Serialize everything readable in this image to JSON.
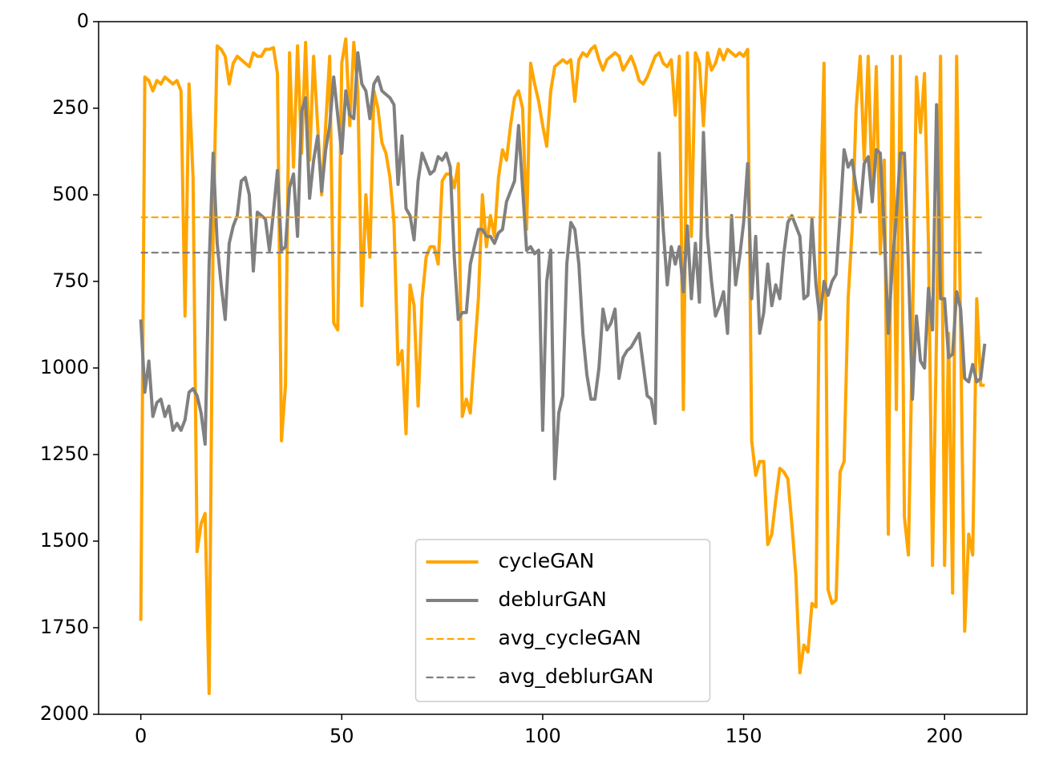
{
  "chart_data": {
    "type": "line",
    "x": [
      0,
      1,
      2,
      3,
      4,
      5,
      6,
      7,
      8,
      9,
      10,
      11,
      12,
      13,
      14,
      15,
      16,
      17,
      18,
      19,
      20,
      21,
      22,
      23,
      24,
      25,
      26,
      27,
      28,
      29,
      30,
      31,
      32,
      33,
      34,
      35,
      36,
      37,
      38,
      39,
      40,
      41,
      42,
      43,
      44,
      45,
      46,
      47,
      48,
      49,
      50,
      51,
      52,
      53,
      54,
      55,
      56,
      57,
      58,
      59,
      60,
      61,
      62,
      63,
      64,
      65,
      66,
      67,
      68,
      69,
      70,
      71,
      72,
      73,
      74,
      75,
      76,
      77,
      78,
      79,
      80,
      81,
      82,
      83,
      84,
      85,
      86,
      87,
      88,
      89,
      90,
      91,
      92,
      93,
      94,
      95,
      96,
      97,
      98,
      99,
      100,
      101,
      102,
      103,
      104,
      105,
      106,
      107,
      108,
      109,
      110,
      111,
      112,
      113,
      114,
      115,
      116,
      117,
      118,
      119,
      120,
      121,
      122,
      123,
      124,
      125,
      126,
      127,
      128,
      129,
      130,
      131,
      132,
      133,
      134,
      135,
      136,
      137,
      138,
      139,
      140,
      141,
      142,
      143,
      144,
      145,
      146,
      147,
      148,
      149,
      150,
      151,
      152,
      153,
      154,
      155,
      156,
      157,
      158,
      159,
      160,
      161,
      162,
      163,
      164,
      165,
      166,
      167,
      168,
      169,
      170,
      171,
      172,
      173,
      174,
      175,
      176,
      177,
      178,
      179,
      180,
      181,
      182,
      183,
      184,
      185,
      186,
      187,
      188,
      189,
      190,
      191,
      192,
      193,
      194,
      195,
      196,
      197,
      198,
      199,
      200,
      201,
      202,
      203,
      204,
      205,
      206,
      207,
      208,
      209,
      210
    ],
    "series": [
      {
        "name": "cycleGAN",
        "color": "#ffa500",
        "values": [
          1730,
          160,
          170,
          200,
          170,
          180,
          160,
          170,
          180,
          170,
          200,
          850,
          180,
          450,
          1530,
          1450,
          1420,
          1940,
          600,
          70,
          80,
          100,
          180,
          120,
          100,
          110,
          120,
          130,
          90,
          100,
          100,
          80,
          80,
          75,
          150,
          1210,
          1050,
          90,
          420,
          70,
          380,
          60,
          400,
          100,
          300,
          500,
          300,
          100,
          870,
          890,
          120,
          50,
          300,
          60,
          200,
          820,
          500,
          680,
          200,
          250,
          350,
          380,
          450,
          580,
          990,
          950,
          1190,
          760,
          820,
          1110,
          800,
          680,
          650,
          650,
          700,
          460,
          440,
          440,
          480,
          410,
          1140,
          1090,
          1130,
          960,
          800,
          500,
          650,
          560,
          620,
          450,
          370,
          400,
          300,
          220,
          200,
          250,
          600,
          120,
          180,
          230,
          300,
          360,
          200,
          130,
          120,
          110,
          120,
          110,
          230,
          110,
          90,
          100,
          80,
          70,
          110,
          140,
          110,
          100,
          90,
          100,
          140,
          120,
          100,
          130,
          170,
          180,
          160,
          130,
          100,
          90,
          120,
          130,
          110,
          270,
          100,
          1120,
          90,
          620,
          90,
          120,
          300,
          90,
          140,
          120,
          80,
          110,
          80,
          90,
          100,
          90,
          100,
          80,
          1210,
          1310,
          1270,
          1270,
          1510,
          1480,
          1380,
          1290,
          1300,
          1320,
          1450,
          1600,
          1880,
          1800,
          1820,
          1680,
          1690,
          600,
          120,
          1640,
          1680,
          1670,
          1300,
          1270,
          800,
          600,
          250,
          100,
          400,
          100,
          500,
          130,
          670,
          400,
          1480,
          100,
          1120,
          100,
          1430,
          1540,
          900,
          160,
          320,
          150,
          650,
          1570,
          900,
          100,
          1570,
          900,
          1650,
          100,
          900,
          1760,
          1480,
          1540,
          800,
          1050,
          1050
        ]
      },
      {
        "name": "deblurGAN",
        "color": "#808080",
        "values": [
          860,
          1070,
          980,
          1140,
          1100,
          1090,
          1140,
          1110,
          1180,
          1160,
          1180,
          1150,
          1070,
          1060,
          1080,
          1130,
          1220,
          700,
          380,
          640,
          760,
          860,
          640,
          590,
          560,
          460,
          450,
          500,
          720,
          550,
          560,
          570,
          660,
          550,
          430,
          660,
          650,
          480,
          440,
          620,
          260,
          220,
          510,
          400,
          330,
          490,
          370,
          300,
          160,
          270,
          380,
          200,
          270,
          280,
          90,
          180,
          200,
          280,
          180,
          160,
          200,
          210,
          220,
          240,
          470,
          330,
          540,
          560,
          630,
          460,
          380,
          410,
          440,
          430,
          390,
          400,
          380,
          420,
          680,
          860,
          840,
          840,
          700,
          650,
          600,
          600,
          620,
          620,
          640,
          610,
          600,
          520,
          490,
          460,
          300,
          480,
          660,
          650,
          670,
          660,
          1180,
          750,
          660,
          1320,
          1130,
          1080,
          700,
          580,
          600,
          700,
          900,
          1020,
          1090,
          1090,
          1000,
          830,
          890,
          870,
          830,
          1030,
          970,
          950,
          940,
          920,
          900,
          990,
          1080,
          1090,
          1160,
          380,
          600,
          760,
          650,
          700,
          650,
          780,
          590,
          800,
          640,
          810,
          320,
          620,
          750,
          850,
          820,
          780,
          900,
          560,
          760,
          680,
          580,
          410,
          800,
          620,
          900,
          840,
          700,
          820,
          760,
          800,
          670,
          580,
          560,
          590,
          620,
          800,
          790,
          570,
          760,
          860,
          750,
          790,
          750,
          730,
          560,
          370,
          420,
          400,
          480,
          550,
          410,
          390,
          520,
          370,
          380,
          610,
          900,
          700,
          560,
          380,
          380,
          700,
          1090,
          850,
          980,
          1000,
          770,
          890,
          240,
          800,
          800,
          970,
          960,
          780,
          830,
          1030,
          1040,
          990,
          1040,
          1030,
          930
        ]
      },
      {
        "name": "avg_cycleGAN",
        "color": "#ffa500",
        "style": "dashed",
        "value": 565
      },
      {
        "name": "avg_deblurGAN",
        "color": "#808080",
        "style": "dashed",
        "value": 667
      }
    ],
    "xlim": [
      -10.5,
      220.5
    ],
    "xticks": [
      0,
      50,
      100,
      150,
      200
    ],
    "ylim": [
      2000,
      0
    ],
    "yticks": [
      0,
      250,
      500,
      750,
      1000,
      1250,
      1500,
      1750,
      2000
    ],
    "legend": "lower center"
  }
}
